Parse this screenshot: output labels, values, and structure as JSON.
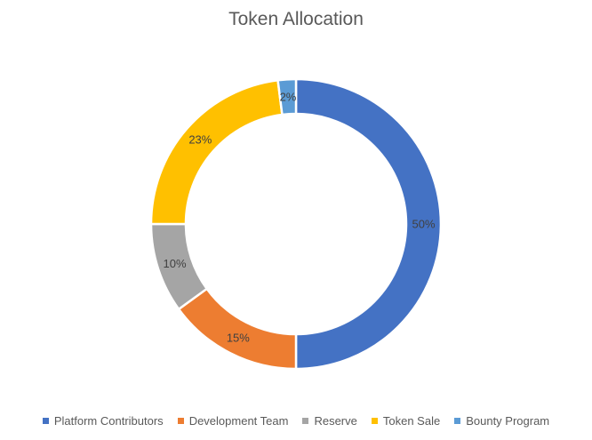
{
  "chart_data": {
    "type": "pie",
    "title": "Token Allocation",
    "donut": true,
    "legend_position": "bottom",
    "categories": [
      "Platform Contributors",
      "Development Team",
      "Reserve",
      "Token Sale",
      "Bounty Program"
    ],
    "values": [
      50,
      15,
      10,
      23,
      2
    ],
    "labels": [
      "50%",
      "15%",
      "10%",
      "23%",
      "2%"
    ],
    "colors": [
      "#4472C4",
      "#ED7D31",
      "#A5A5A5",
      "#FFC000",
      "#5B9BD5"
    ]
  }
}
